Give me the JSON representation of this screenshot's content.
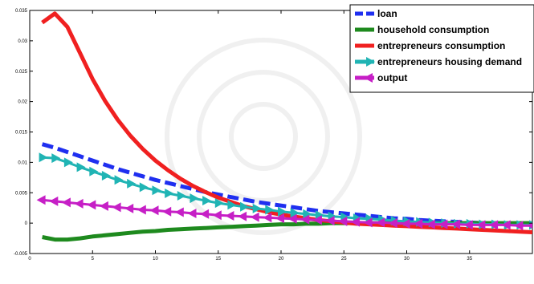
{
  "chart_data": {
    "type": "line",
    "xlim": [
      0,
      40
    ],
    "ylim": [
      -0.005,
      0.035
    ],
    "xticks": [
      0,
      5,
      10,
      15,
      20,
      25,
      30,
      35
    ],
    "yticks": [
      -0.005,
      0,
      0.005,
      0.01,
      0.015,
      0.02,
      0.025,
      0.03,
      0.035
    ],
    "xtick_labels": [
      "0",
      "5",
      "10",
      "15",
      "20",
      "25",
      "30",
      "35"
    ],
    "ytick_labels": [
      "-0.005",
      "0",
      "0.005",
      "0.01",
      "0.015",
      "0.02",
      "0.025",
      "0.03",
      "0.035"
    ],
    "grid": false,
    "legend_position": "top-right",
    "x": [
      1,
      2,
      3,
      4,
      5,
      6,
      7,
      8,
      9,
      10,
      11,
      12,
      13,
      14,
      15,
      16,
      17,
      18,
      19,
      20,
      21,
      22,
      23,
      24,
      25,
      26,
      27,
      28,
      29,
      30,
      31,
      32,
      33,
      34,
      35,
      36,
      37,
      38,
      39,
      40
    ],
    "series": [
      {
        "name": "loan",
        "color": "#1f2ff0",
        "style": "dashed",
        "values": [
          0.013,
          0.0124,
          0.0117,
          0.011,
          0.0103,
          0.0096,
          0.0089,
          0.0083,
          0.0077,
          0.0071,
          0.0066,
          0.0061,
          0.0056,
          0.0051,
          0.0047,
          0.0043,
          0.0039,
          0.0035,
          0.0032,
          0.0029,
          0.0026,
          0.0023,
          0.002,
          0.0018,
          0.0016,
          0.0014,
          0.0012,
          0.001,
          0.0008,
          0.0007,
          0.0005,
          0.0004,
          0.0003,
          0.0002,
          0.0001,
          0.0,
          -0.0001,
          -0.0001,
          -0.0002,
          -0.0002
        ]
      },
      {
        "name": "household consumption",
        "color": "#1e8a1e",
        "style": "solid",
        "values": [
          -0.0023,
          -0.0027,
          -0.0027,
          -0.0025,
          -0.0022,
          -0.002,
          -0.0018,
          -0.0016,
          -0.0014,
          -0.0013,
          -0.0011,
          -0.001,
          -0.0009,
          -0.0008,
          -0.0007,
          -0.0006,
          -0.0005,
          -0.0004,
          -0.0003,
          -0.0002,
          -0.0002,
          -0.0001,
          -0.0001,
          0.0,
          0.0,
          0.0,
          0.0,
          0.0,
          0.0,
          0.0,
          0.0,
          0.0,
          0.0,
          0.0,
          0.0,
          0.0,
          0.0,
          0.0,
          0.0,
          0.0
        ]
      },
      {
        "name": "entrepreneurs consumption",
        "color": "#f02020",
        "style": "solid",
        "values": [
          0.033,
          0.0345,
          0.0323,
          0.028,
          0.0237,
          0.0201,
          0.017,
          0.0144,
          0.0122,
          0.0103,
          0.0087,
          0.0073,
          0.0061,
          0.0051,
          0.0042,
          0.0035,
          0.0028,
          0.0023,
          0.0018,
          0.0014,
          0.0011,
          0.0008,
          0.0005,
          0.0003,
          0.0001,
          -0.0001,
          -0.0002,
          -0.0003,
          -0.0004,
          -0.0005,
          -0.0006,
          -0.0007,
          -0.0008,
          -0.0009,
          -0.001,
          -0.0011,
          -0.0012,
          -0.0013,
          -0.0014,
          -0.0015
        ]
      },
      {
        "name": "entrepreneurs housing demand",
        "color": "#20b4b4",
        "style": "triangle-right-markers",
        "values": [
          0.0108,
          0.0107,
          0.01,
          0.0092,
          0.0085,
          0.0078,
          0.0071,
          0.0065,
          0.0059,
          0.0054,
          0.0049,
          0.0045,
          0.0041,
          0.0037,
          0.0033,
          0.003,
          0.0027,
          0.0024,
          0.0022,
          0.0019,
          0.0017,
          0.0015,
          0.0013,
          0.0011,
          0.001,
          0.0008,
          0.0007,
          0.0006,
          0.0004,
          0.0003,
          0.0002,
          0.0001,
          0.0,
          -0.0001,
          -0.0001,
          -0.0002,
          -0.0002,
          -0.0003,
          -0.0003,
          -0.0003
        ]
      },
      {
        "name": "output",
        "color": "#c61fc6",
        "style": "triangle-left-markers",
        "values": [
          0.0038,
          0.0036,
          0.0034,
          0.0032,
          0.003,
          0.0028,
          0.0026,
          0.0024,
          0.0022,
          0.0021,
          0.0019,
          0.0018,
          0.0016,
          0.0015,
          0.0013,
          0.0012,
          0.0011,
          0.001,
          0.0009,
          0.0008,
          0.0007,
          0.0006,
          0.0005,
          0.0004,
          0.0003,
          0.0002,
          0.0001,
          0.0001,
          0.0,
          -0.0001,
          -0.0001,
          -0.0002,
          -0.0002,
          -0.0002,
          -0.0003,
          -0.0003,
          -0.0003,
          -0.0003,
          -0.0004,
          -0.0004
        ]
      }
    ]
  }
}
